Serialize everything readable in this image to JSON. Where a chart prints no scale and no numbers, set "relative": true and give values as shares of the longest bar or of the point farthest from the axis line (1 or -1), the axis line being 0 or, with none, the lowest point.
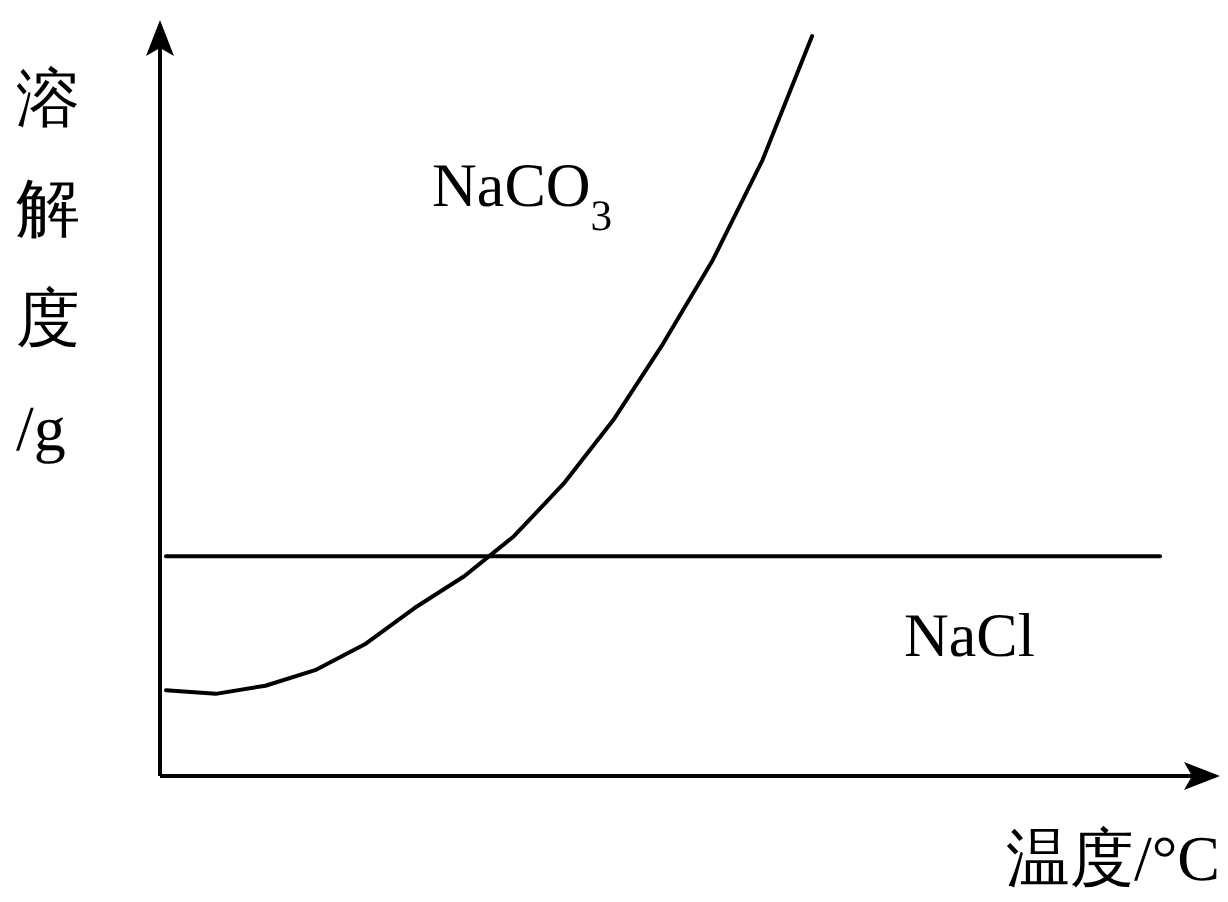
{
  "chart_data": {
    "type": "line",
    "relative": true,
    "xlabel": "温度/°C",
    "ylabel": "溶解度/g",
    "marker": "none",
    "line_style": "solid",
    "categories": [
      null,
      null,
      null,
      null,
      null,
      null,
      null,
      null,
      null,
      null,
      null,
      null,
      null,
      null,
      null,
      null,
      null,
      null,
      null,
      null,
      null
    ],
    "series": [
      {
        "name": "NaCO$_{3}$",
        "color": "#000000",
        "values": [
          0.116,
          0.111,
          0.122,
          0.143,
          0.178,
          0.227,
          0.27,
          0.324,
          0.395,
          0.481,
          0.584,
          0.697,
          0.832,
          1.0,
          null,
          null,
          null,
          null,
          null,
          null,
          null
        ]
      },
      {
        "name": "NaCl",
        "color": "#000000",
        "values": [
          0.297,
          0.297,
          0.297,
          0.297,
          0.297,
          0.297,
          0.297,
          0.297,
          0.297,
          0.297,
          0.297,
          0.297,
          0.297,
          0.297,
          0.297,
          0.297,
          0.297,
          0.297,
          0.297,
          0.297,
          0.297
        ]
      }
    ]
  }
}
